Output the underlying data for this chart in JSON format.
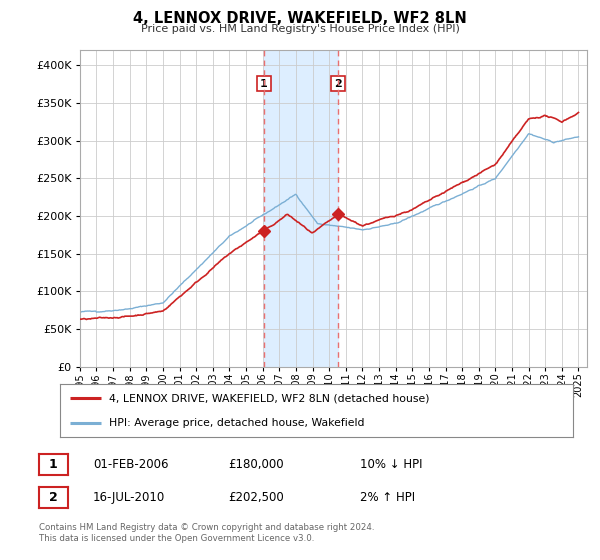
{
  "title": "4, LENNOX DRIVE, WAKEFIELD, WF2 8LN",
  "subtitle": "Price paid vs. HM Land Registry's House Price Index (HPI)",
  "legend_line1": "4, LENNOX DRIVE, WAKEFIELD, WF2 8LN (detached house)",
  "legend_line2": "HPI: Average price, detached house, Wakefield",
  "transaction1_label": "1",
  "transaction1_date": "01-FEB-2006",
  "transaction1_price": "£180,000",
  "transaction1_hpi": "10% ↓ HPI",
  "transaction2_label": "2",
  "transaction2_date": "16-JUL-2010",
  "transaction2_price": "£202,500",
  "transaction2_hpi": "2% ↑ HPI",
  "footer_line1": "Contains HM Land Registry data © Crown copyright and database right 2024.",
  "footer_line2": "This data is licensed under the Open Government Licence v3.0.",
  "hpi_color": "#7bafd4",
  "price_color": "#cc2222",
  "marker_color": "#cc2222",
  "background_color": "#ffffff",
  "grid_color": "#cccccc",
  "highlight_color": "#ddeeff",
  "vline_color": "#e87070",
  "transaction1_x": 2006.08,
  "transaction2_x": 2010.54,
  "ylim_min": 0,
  "ylim_max": 420000,
  "t1_price": 180000,
  "t2_price": 202500
}
